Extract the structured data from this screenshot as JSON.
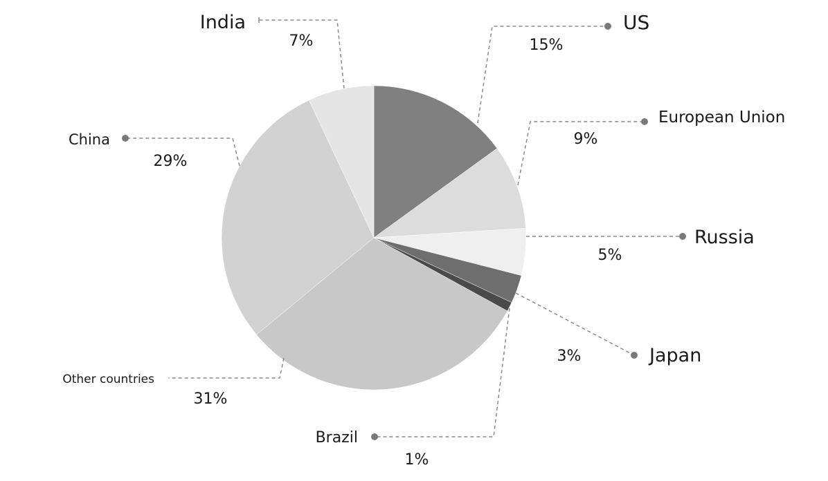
{
  "chart_data": {
    "type": "pie",
    "start_angle_deg": 0,
    "direction": "clockwise",
    "legend": "none",
    "series": [
      {
        "name": "US",
        "value": 15,
        "label": "15%",
        "color": "#808080"
      },
      {
        "name": "European Union",
        "value": 9,
        "label": "9%",
        "color": "#dcdcdc"
      },
      {
        "name": "Russia",
        "value": 5,
        "label": "5%",
        "color": "#efefef"
      },
      {
        "name": "Japan",
        "value": 3,
        "label": "3%",
        "color": "#6e6e6e"
      },
      {
        "name": "Brazil",
        "value": 1,
        "label": "1%",
        "color": "#4a4a4a"
      },
      {
        "name": "Other countries",
        "value": 31,
        "label": "31%",
        "color": "#c8c8c8"
      },
      {
        "name": "China",
        "value": 29,
        "label": "29%",
        "color": "#d2d2d2"
      },
      {
        "name": "India",
        "value": 7,
        "label": "7%",
        "color": "#e5e5e5"
      }
    ]
  }
}
